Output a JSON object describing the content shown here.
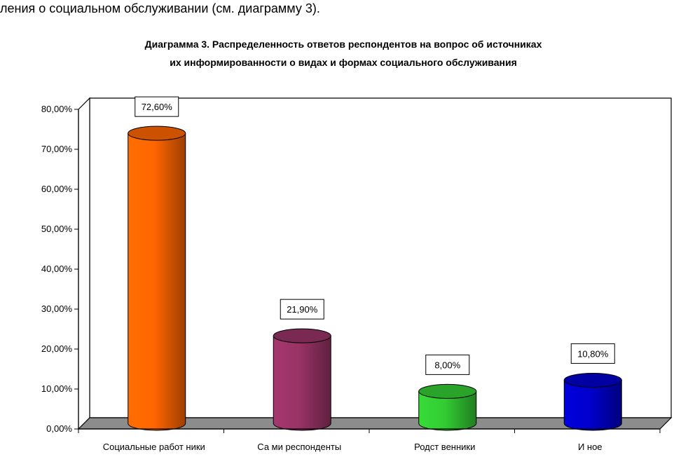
{
  "page": {
    "lead_text": "ления о социальном обслуживании (см. диаграмму 3)."
  },
  "chart_data": {
    "type": "bar",
    "title": "Диаграмма 3. Распределенность ответов респондентов на вопрос об источниках",
    "subtitle": "их информированности о видах и формах социального обслуживания",
    "categories": [
      "Социальные работ ники",
      "Са ми респонденты",
      "Родст венники",
      "И ное"
    ],
    "values": [
      72.6,
      21.9,
      8.0,
      10.8
    ],
    "data_labels": [
      "72,60%",
      "21,90%",
      "8,00%",
      "10,80%"
    ],
    "ylim": [
      0,
      80
    ],
    "yticks": [
      0,
      10,
      20,
      30,
      40,
      50,
      60,
      70,
      80
    ],
    "ytick_labels": [
      "0,00%",
      "10,00%",
      "20,00%",
      "30,00%",
      "40,00%",
      "50,00%",
      "60,00%",
      "70,00%",
      "80,00%"
    ],
    "colors": [
      "#FF6600",
      "#993366",
      "#33CC33",
      "#0000CC"
    ],
    "floor_color": "#8C8C8C",
    "grid": false,
    "legend": "none",
    "bar_shape": "cylinder"
  }
}
